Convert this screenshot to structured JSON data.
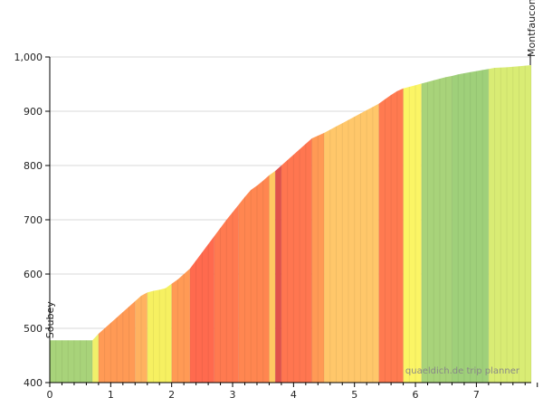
{
  "chart_data": {
    "type": "area",
    "xlim": [
      0,
      7.9
    ],
    "ylim": [
      400,
      1000
    ],
    "x_ticks": [
      0,
      1,
      2,
      3,
      4,
      5,
      6,
      7
    ],
    "y_ticks": [
      400,
      500,
      600,
      700,
      800,
      900,
      1000
    ],
    "y_tick_labels": [
      "400",
      "500",
      "600",
      "700",
      "800",
      "900",
      "1,000"
    ],
    "grid": true,
    "start_label": "Soubey",
    "end_label": "Montfaucon",
    "watermark": "quaeldich.de trip planner",
    "profile": [
      [
        0.0,
        478
      ],
      [
        0.7,
        478
      ],
      [
        0.8,
        490
      ],
      [
        0.9,
        500
      ],
      [
        1.0,
        510
      ],
      [
        1.1,
        520
      ],
      [
        1.2,
        530
      ],
      [
        1.3,
        540
      ],
      [
        1.4,
        550
      ],
      [
        1.5,
        560
      ],
      [
        1.6,
        566
      ],
      [
        1.7,
        569
      ],
      [
        1.8,
        571
      ],
      [
        1.9,
        574
      ],
      [
        2.0,
        582
      ],
      [
        2.1,
        590
      ],
      [
        2.2,
        600
      ],
      [
        2.3,
        610
      ],
      [
        2.4,
        625
      ],
      [
        2.5,
        640
      ],
      [
        2.6,
        655
      ],
      [
        2.7,
        670
      ],
      [
        2.8,
        685
      ],
      [
        2.9,
        700
      ],
      [
        3.0,
        714
      ],
      [
        3.1,
        728
      ],
      [
        3.2,
        742
      ],
      [
        3.3,
        755
      ],
      [
        3.4,
        763
      ],
      [
        3.5,
        772
      ],
      [
        3.6,
        782
      ],
      [
        3.7,
        790
      ],
      [
        3.8,
        800
      ],
      [
        3.9,
        810
      ],
      [
        4.0,
        820
      ],
      [
        4.1,
        830
      ],
      [
        4.2,
        840
      ],
      [
        4.3,
        850
      ],
      [
        4.4,
        855
      ],
      [
        4.5,
        860
      ],
      [
        4.6,
        866
      ],
      [
        4.7,
        872
      ],
      [
        4.8,
        878
      ],
      [
        4.9,
        884
      ],
      [
        5.0,
        890
      ],
      [
        5.1,
        896
      ],
      [
        5.2,
        902
      ],
      [
        5.3,
        908
      ],
      [
        5.4,
        914
      ],
      [
        5.5,
        922
      ],
      [
        5.6,
        930
      ],
      [
        5.7,
        937
      ],
      [
        5.8,
        942
      ],
      [
        5.9,
        945
      ],
      [
        6.0,
        948
      ],
      [
        6.1,
        951
      ],
      [
        6.2,
        954
      ],
      [
        6.3,
        957
      ],
      [
        6.4,
        960
      ],
      [
        6.5,
        963
      ],
      [
        6.6,
        965
      ],
      [
        6.7,
        968
      ],
      [
        6.8,
        970
      ],
      [
        6.9,
        972
      ],
      [
        7.0,
        974
      ],
      [
        7.1,
        976
      ],
      [
        7.2,
        978
      ],
      [
        7.3,
        980
      ],
      [
        7.5,
        981
      ],
      [
        7.7,
        983
      ],
      [
        7.9,
        985
      ]
    ],
    "gradient_segments": [
      {
        "x0": 0.0,
        "x1": 0.7,
        "color": "#a8d37a"
      },
      {
        "x0": 0.7,
        "x1": 0.8,
        "color": "#f0f06a"
      },
      {
        "x0": 0.8,
        "x1": 1.4,
        "color": "#ff9a55"
      },
      {
        "x0": 1.4,
        "x1": 1.6,
        "color": "#ffb260"
      },
      {
        "x0": 1.6,
        "x1": 2.0,
        "color": "#f6f061"
      },
      {
        "x0": 2.0,
        "x1": 2.3,
        "color": "#ff9a55"
      },
      {
        "x0": 2.3,
        "x1": 2.7,
        "color": "#ff6a4e"
      },
      {
        "x0": 2.7,
        "x1": 3.1,
        "color": "#ff7a50"
      },
      {
        "x0": 3.1,
        "x1": 3.6,
        "color": "#ff8650"
      },
      {
        "x0": 3.6,
        "x1": 3.7,
        "color": "#ffc862"
      },
      {
        "x0": 3.7,
        "x1": 3.8,
        "color": "#e0524a"
      },
      {
        "x0": 3.8,
        "x1": 4.3,
        "color": "#ff7650"
      },
      {
        "x0": 4.3,
        "x1": 4.5,
        "color": "#ff9a55"
      },
      {
        "x0": 4.5,
        "x1": 5.4,
        "color": "#ffc76a"
      },
      {
        "x0": 5.4,
        "x1": 5.8,
        "color": "#ff7a50"
      },
      {
        "x0": 5.8,
        "x1": 6.1,
        "color": "#fbf565"
      },
      {
        "x0": 6.1,
        "x1": 6.6,
        "color": "#a8d37a"
      },
      {
        "x0": 6.6,
        "x1": 7.2,
        "color": "#9fd07a"
      },
      {
        "x0": 7.2,
        "x1": 7.9,
        "color": "#d9ec74"
      }
    ]
  }
}
